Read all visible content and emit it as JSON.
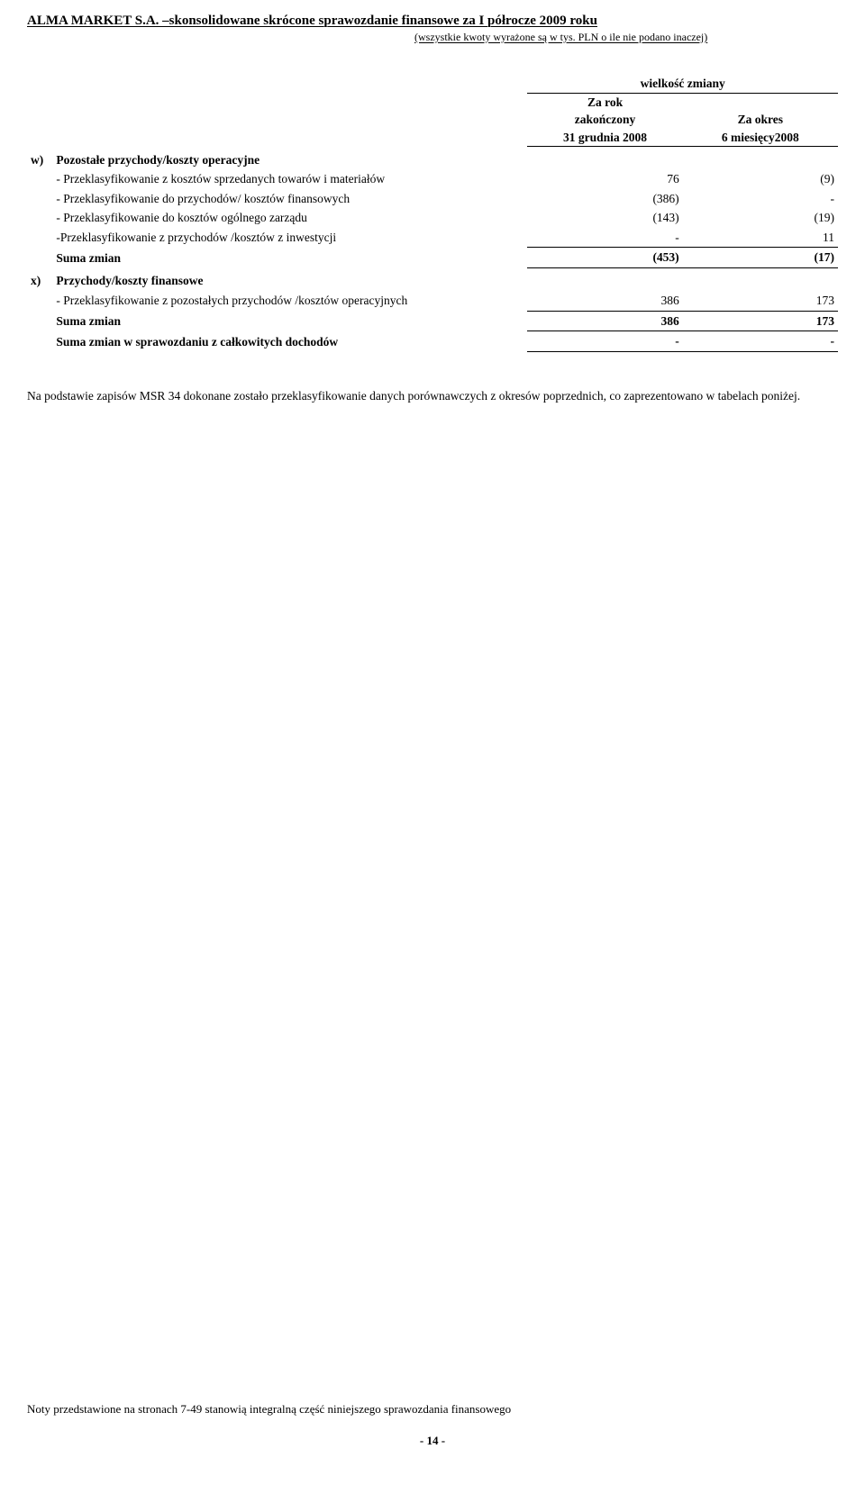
{
  "header": {
    "line1_bold": "ALMA MARKET S.A. –skonsolidowane skrócone sprawozdanie finansowe za I półrocze 2009 roku",
    "line2": "(wszystkie kwoty wyrażone są w tys. PLN o ile nie podano inaczej)"
  },
  "table": {
    "super_header": "wielkość zmiany",
    "col1_line1": "Za rok",
    "col1_line2": "zakończony",
    "col1_line3": "31 grudnia 2008",
    "col2_line1": "Za okres",
    "col2_line2": "6 miesięcy2008",
    "section_w_marker": "w)",
    "section_w_title": "Pozostałe przychody/koszty operacyjne",
    "rows_w": [
      {
        "label": "- Przeklasyfikowanie z kosztów sprzedanych towarów i materiałów",
        "v1": "76",
        "v2": "(9)"
      },
      {
        "label": "- Przeklasyfikowanie do przychodów/ kosztów finansowych",
        "v1": "(386)",
        "v2": "-"
      },
      {
        "label": "- Przeklasyfikowanie  do kosztów ogólnego zarządu",
        "v1": "(143)",
        "v2": "(19)"
      },
      {
        "label": "-Przeklasyfikowanie z przychodów /kosztów z inwestycji",
        "v1": "-",
        "v2": "11"
      }
    ],
    "sum_w_label": "Suma zmian",
    "sum_w_v1": "(453)",
    "sum_w_v2": "(17)",
    "section_x_marker": "x)",
    "section_x_title": "Przychody/koszty finansowe",
    "rows_x": [
      {
        "label": "- Przeklasyfikowanie z pozostałych przychodów /kosztów operacyjnych",
        "v1": "386",
        "v2": "173"
      }
    ],
    "sum_x_label": "Suma zmian",
    "sum_x_v1": "386",
    "sum_x_v2": "173",
    "total_label": "Suma zmian w sprawozdaniu z całkowitych dochodów",
    "total_v1": "-",
    "total_v2": "-"
  },
  "paragraph": "Na podstawie zapisów MSR 34 dokonane zostało przeklasyfikowanie danych porównawczych z okresów poprzednich, co zaprezentowano w tabelach poniżej.",
  "footer": {
    "note": "Noty przedstawione na stronach 7-49 stanowią integralną część niniejszego sprawozdania finansowego",
    "page": "- 14 -"
  }
}
